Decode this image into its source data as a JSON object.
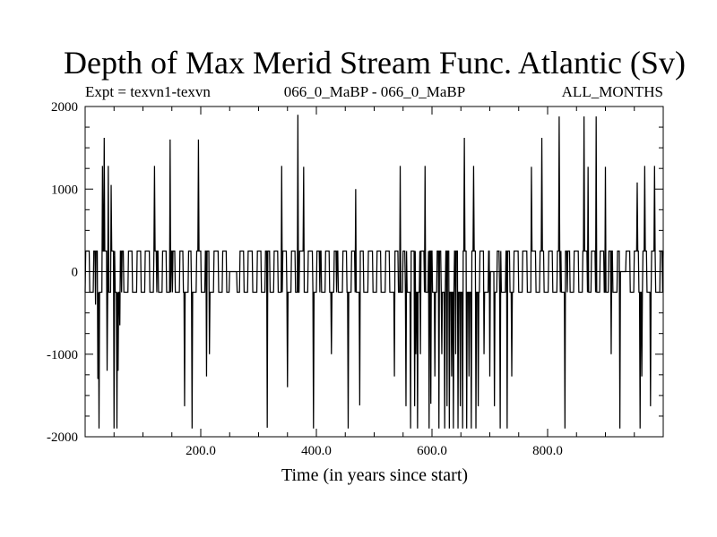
{
  "chart_data": {
    "type": "line",
    "title": "Depth of Max Merid Stream Func. Atlantic (Sv)",
    "subtitle_left": "Expt = texvn1-texvn",
    "subtitle_center": "066_0_MaBP - 066_0_MaBP",
    "subtitle_right": "ALL_MONTHS",
    "xlabel": "Time (in years since start)",
    "ylabel": "",
    "xlim": [
      0,
      1000
    ],
    "ylim": [
      -2000,
      2000
    ],
    "x_ticks": [
      200,
      400,
      600,
      800
    ],
    "x_tick_labels": [
      "200.0",
      "400.0",
      "600.0",
      "800.0"
    ],
    "y_ticks": [
      -2000,
      -1000,
      0,
      1000,
      2000
    ],
    "y_tick_labels": [
      "-2000",
      "-1000",
      "0",
      "1000",
      "2000"
    ],
    "grid": false,
    "baseline": 0,
    "step_level": 250,
    "series": [
      {
        "x_start": 0,
        "x_step": 1,
        "spikes": [
          {
            "x": 18,
            "y": -400
          },
          {
            "x": 22,
            "y": -1300
          },
          {
            "x": 24,
            "y": -1900
          },
          {
            "x": 30,
            "y": 1280
          },
          {
            "x": 33,
            "y": 1620
          },
          {
            "x": 38,
            "y": -1200
          },
          {
            "x": 40,
            "y": 1280
          },
          {
            "x": 45,
            "y": 1050
          },
          {
            "x": 50,
            "y": -1900
          },
          {
            "x": 55,
            "y": -1900
          },
          {
            "x": 57,
            "y": -1200
          },
          {
            "x": 60,
            "y": -650
          },
          {
            "x": 120,
            "y": 1280
          },
          {
            "x": 147,
            "y": 1600
          },
          {
            "x": 172,
            "y": -1630
          },
          {
            "x": 185,
            "y": -1900
          },
          {
            "x": 196,
            "y": 1600
          },
          {
            "x": 210,
            "y": -1270
          },
          {
            "x": 215,
            "y": -1000
          },
          {
            "x": 315,
            "y": -1890
          },
          {
            "x": 340,
            "y": 1280
          },
          {
            "x": 350,
            "y": -1400
          },
          {
            "x": 368,
            "y": 1900
          },
          {
            "x": 378,
            "y": 1270
          },
          {
            "x": 395,
            "y": -1900
          },
          {
            "x": 426,
            "y": -1000
          },
          {
            "x": 455,
            "y": -1900
          },
          {
            "x": 468,
            "y": 1000
          },
          {
            "x": 475,
            "y": -1620
          },
          {
            "x": 535,
            "y": -1270
          },
          {
            "x": 545,
            "y": 1280
          },
          {
            "x": 555,
            "y": -1630
          },
          {
            "x": 563,
            "y": -1900
          },
          {
            "x": 570,
            "y": -1630
          },
          {
            "x": 572,
            "y": -1000
          },
          {
            "x": 575,
            "y": -1900
          },
          {
            "x": 580,
            "y": -1000
          },
          {
            "x": 588,
            "y": 1280
          },
          {
            "x": 595,
            "y": -1900
          },
          {
            "x": 598,
            "y": -1600
          },
          {
            "x": 605,
            "y": -1270
          },
          {
            "x": 612,
            "y": -1900
          },
          {
            "x": 617,
            "y": -1000
          },
          {
            "x": 622,
            "y": -1900
          },
          {
            "x": 626,
            "y": -1630
          },
          {
            "x": 630,
            "y": -1900
          },
          {
            "x": 634,
            "y": -1270
          },
          {
            "x": 637,
            "y": -1900
          },
          {
            "x": 641,
            "y": -1000
          },
          {
            "x": 645,
            "y": -1900
          },
          {
            "x": 649,
            "y": -1630
          },
          {
            "x": 653,
            "y": -1900
          },
          {
            "x": 656,
            "y": 1620
          },
          {
            "x": 660,
            "y": -1900
          },
          {
            "x": 664,
            "y": -1270
          },
          {
            "x": 668,
            "y": -1900
          },
          {
            "x": 672,
            "y": 1280
          },
          {
            "x": 676,
            "y": -1900
          },
          {
            "x": 680,
            "y": -1630
          },
          {
            "x": 690,
            "y": -1000
          },
          {
            "x": 700,
            "y": -1270
          },
          {
            "x": 708,
            "y": -1630
          },
          {
            "x": 718,
            "y": -1900
          },
          {
            "x": 730,
            "y": -1900
          },
          {
            "x": 738,
            "y": -1270
          },
          {
            "x": 772,
            "y": 1270
          },
          {
            "x": 790,
            "y": 1620
          },
          {
            "x": 820,
            "y": 1880
          },
          {
            "x": 830,
            "y": -1900
          },
          {
            "x": 863,
            "y": 1880
          },
          {
            "x": 870,
            "y": 1270
          },
          {
            "x": 884,
            "y": 1880
          },
          {
            "x": 900,
            "y": 1270
          },
          {
            "x": 910,
            "y": -1000
          },
          {
            "x": 925,
            "y": -1900
          },
          {
            "x": 955,
            "y": 1080
          },
          {
            "x": 960,
            "y": -1900
          },
          {
            "x": 963,
            "y": -1270
          },
          {
            "x": 968,
            "y": 1280
          },
          {
            "x": 978,
            "y": -1630
          },
          {
            "x": 985,
            "y": 1280
          }
        ],
        "quiet_ranges": [
          [
            250,
            262
          ],
          [
            700,
            708
          ],
          [
            925,
            935
          ]
        ]
      }
    ]
  }
}
